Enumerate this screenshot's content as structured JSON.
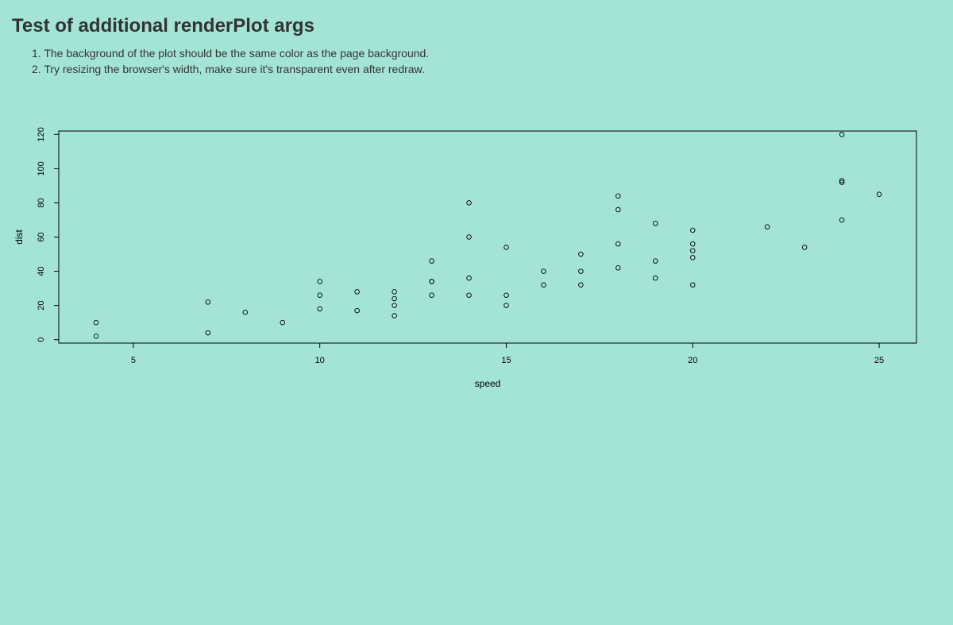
{
  "page": {
    "title": "Test of additional renderPlot args",
    "instructions": [
      "1. The background of the plot should be the same color as the page background.",
      "2. Try resizing the browser's width, make sure it's transparent even after redraw."
    ],
    "background_color": "#a3e4d7"
  },
  "chart_data": {
    "type": "scatter",
    "title": "",
    "xlabel": "speed",
    "ylabel": "dist",
    "xlim": [
      3,
      26
    ],
    "ylim": [
      -2,
      122
    ],
    "xticks": [
      5,
      10,
      15,
      20,
      25
    ],
    "yticks": [
      0,
      20,
      40,
      60,
      80,
      100,
      120
    ],
    "marker": "open-circle",
    "grid": false,
    "x": [
      4,
      4,
      7,
      7,
      8,
      9,
      10,
      10,
      10,
      11,
      11,
      12,
      12,
      12,
      12,
      13,
      13,
      13,
      13,
      14,
      14,
      14,
      14,
      15,
      15,
      15,
      16,
      16,
      17,
      17,
      17,
      18,
      18,
      18,
      18,
      19,
      19,
      19,
      20,
      20,
      20,
      20,
      20,
      22,
      23,
      24,
      24,
      24,
      24,
      25
    ],
    "y": [
      2,
      10,
      4,
      22,
      16,
      10,
      18,
      26,
      34,
      17,
      28,
      14,
      20,
      24,
      28,
      26,
      34,
      34,
      46,
      26,
      36,
      60,
      80,
      20,
      26,
      54,
      32,
      40,
      32,
      40,
      50,
      42,
      56,
      76,
      84,
      36,
      46,
      68,
      32,
      48,
      52,
      56,
      64,
      66,
      54,
      70,
      92,
      93,
      120,
      85
    ]
  }
}
